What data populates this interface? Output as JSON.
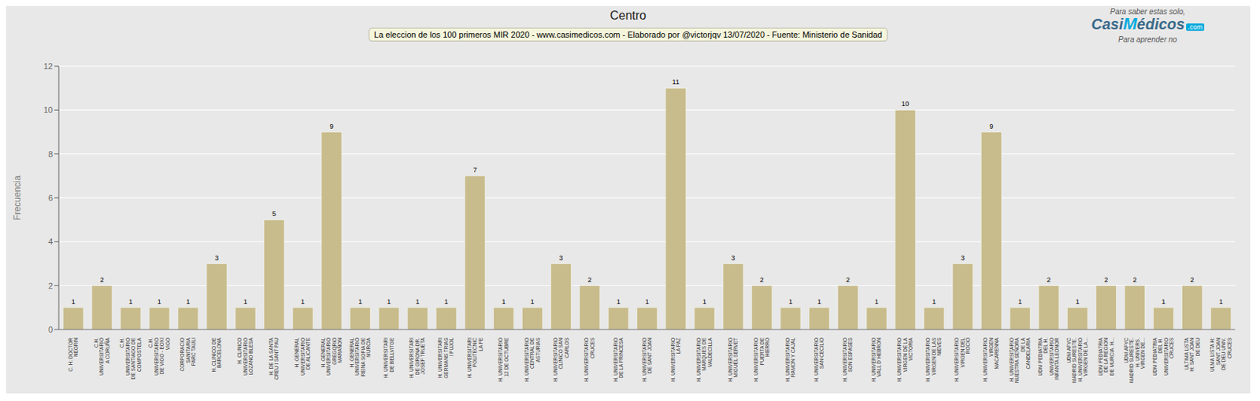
{
  "chart_data": {
    "type": "bar",
    "title": "Centro",
    "subtitle": "La eleccion de los 100 primeros MIR 2020 - www.casimedicos.com - Elaborado por @victorjqv 13/07/2020 - Fuente: Ministerio de Sanidad",
    "annotations": [
      "Para saber estas solo,",
      "Casi",
      "M",
      "édicos",
      ".com",
      "Para aprender no"
    ],
    "ylabel": "Frecuencia",
    "categories": [
      "C. H. DOCTOR\nNEGRIN",
      "C.H.\nUNIVERSITARIO\nA CORUÑA",
      "C.H.\nUNIVERSITARIO\nDE SANTIAGO DE\nCOMPOSTELA",
      "C.H.\nUNIVERSITARIO\nDE VIGO - EOXI\nVIGO",
      "CORPORACIO\nSANITARIA\nPARC TAULI",
      "H. CLINICO DE\nBARCELONA",
      "H. CLINICO\nUNIVERSITARIO\nLOZANO BLESA",
      "H. DE LA SANTA\nCREU I SANT PAU",
      "H. GENERAL\nUNIVERSITARIO\nDE ALICANTE",
      "H. GENERAL\nUNIVERSITARIO\nGREGORIO\nMARAÑON",
      "H. GENERAL\nUNIVERSITARIO\nREINA SOFIA DE\nMURCIA",
      "H. UNIVERSITARI\nDE BELLVITGE",
      "H. UNIVERSITARI\nDE GIRONA DR.\nJOSEP TRUETA",
      "H. UNIVERSITARI\nGERMANS TRIAS\nI PUJOL",
      "H. UNIVERSITARI\nPOLITECNIC\nLA FE",
      "H. UNIVERSITARIO\n12 DE OCTUBRE",
      "H. UNIVERSITARIO\nCENTRAL DE\nASTURIAS",
      "H. UNIVERSITARIO\nCLINICO SAN\nCARLOS",
      "H. UNIVERSITARIO\nCRUCES",
      "H. UNIVERSITARIO\nDE LA PRINCESA",
      "H. UNIVERSITARIO\nDE SANT JOAN",
      "H. UNIVERSITARIO\nLA PAZ",
      "H. UNIVERSITARIO\nMARQUES DE\nVALDECILLA",
      "H. UNIVERSITARIO\nMIGUEL SERVET",
      "H. UNIVERSITARIO\nPUERTA DE\nHIERRO",
      "H. UNIVERSITARIO\nRAMON Y CAJAL",
      "H. UNIVERSITARIO\nSAN CECILIO",
      "H. UNIVERSITARIO\nSON ESPASES",
      "H. UNIVERSITARIO\nVALL D´HEBRON",
      "H. UNIVERSITARIO\nVIRGEN DE LA\nVICTORIA",
      "H. UNIVERSITARIO\nVIRGEN DE LAS\nNIEVES",
      "H. UNIVERSITARIO\nVIRGEN DEL\nROCIO",
      "H. UNIVERSITARIO\nVIRGEN\nMACARENNA",
      "H. UNIVERSITARIO\nNUESTRA SEÑORA\nDE LA\nCANDELARIA",
      "UDM PEDIATRIA\nDEL H.\nUNIVERSITARIO\nINFANTA LEONOR",
      "UDM AFYC\nMADRID SURESTE.\nH. UNIVERSITARIO\nVIRGEN DE LA...",
      "UDM PEDIATRIA\nDE LA REGION\nDE MURCIA. H...",
      "UDM AFYC\nMADRID SURESTE.\nH. UNIVERS.\nVIRGEN DE...",
      "UDM PEDIATRIA\nDEL H.\nUNIVERSITARIO\nCRUCES",
      "ULTIMA LISTA\nH: SANT JOAN\nDE DEU",
      "ULMA LISTA H:\nSANT JOAN\nDE DEU UNIV.\nCRUCES"
    ],
    "values": [
      1,
      2,
      1,
      1,
      1,
      3,
      1,
      5,
      1,
      9,
      1,
      1,
      1,
      1,
      7,
      1,
      1,
      3,
      2,
      1,
      1,
      11,
      1,
      3,
      2,
      1,
      1,
      2,
      1,
      10,
      1,
      3,
      9,
      1,
      2,
      1,
      2,
      2,
      1,
      2,
      1
    ],
    "color": "#C8BC8C",
    "ylim": [
      0,
      12
    ],
    "yticks": [
      0,
      2,
      4,
      6,
      8,
      10,
      12
    ],
    "grid": true,
    "data_labels": true
  }
}
